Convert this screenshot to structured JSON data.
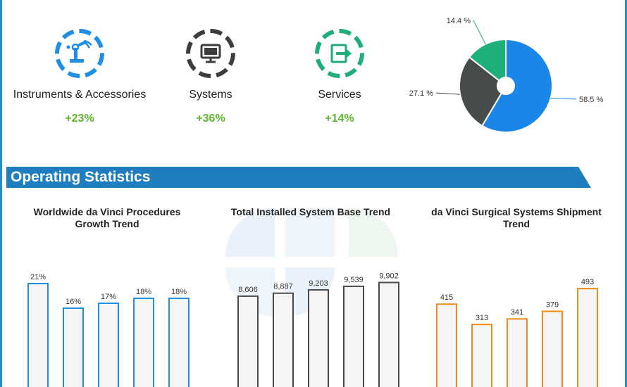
{
  "segments": [
    {
      "label": "Instruments & Accessories",
      "growth": "+23%",
      "icon": "robotic-arm-icon",
      "color": "#1f8fe5"
    },
    {
      "label": "Systems",
      "growth": "+36%",
      "icon": "monitor-icon",
      "color": "#3d3d3d"
    },
    {
      "label": "Services",
      "growth": "+14%",
      "icon": "exit-arrow-icon",
      "color": "#1fae7a"
    }
  ],
  "section": {
    "title": "Operating Statistics",
    "color": "#1f7ec0"
  },
  "chart_data": [
    {
      "type": "pie",
      "style": "donut",
      "slices": [
        {
          "label": "58.5 %",
          "value": 58.5,
          "color": "#1a86e8"
        },
        {
          "label": "27.1 %",
          "value": 27.1,
          "color": "#484b4c"
        },
        {
          "label": "14.4 %",
          "value": 14.4,
          "color": "#1db07a"
        }
      ]
    },
    {
      "type": "bar",
      "title": "Worldwide da Vinci Procedures Growth Trend",
      "values": [
        21,
        16,
        17,
        18,
        18
      ],
      "labels": [
        "21%",
        "16%",
        "17%",
        "18%",
        "18%"
      ],
      "color": "#1f8fe5",
      "ylim": [
        0,
        30
      ]
    },
    {
      "type": "bar",
      "title": "Total Installed System Base Trend",
      "values": [
        8606,
        8887,
        9203,
        9539,
        9902
      ],
      "labels": [
        "8,606",
        "8,887",
        "9,203",
        "9,539",
        "9,902"
      ],
      "color": "#4a4a4a",
      "ylim": [
        0,
        14000
      ]
    },
    {
      "type": "bar",
      "title": "da Vinci Surgical Systems Shipment Trend",
      "values": [
        415,
        313,
        341,
        379,
        493
      ],
      "labels": [
        "415",
        "313",
        "341",
        "379",
        "493"
      ],
      "color": "#ef8c1a",
      "ylim": [
        0,
        740
      ]
    }
  ]
}
